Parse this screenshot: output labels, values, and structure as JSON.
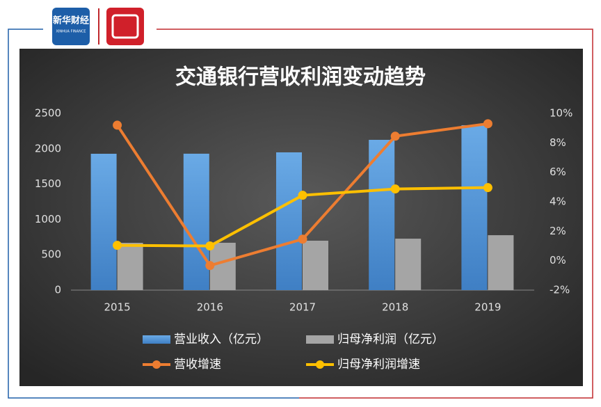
{
  "logo": {
    "name": "新华财经",
    "subtitle": "XINHUA FINANCE"
  },
  "chart_data": {
    "type": "bar",
    "title": "交通银行营收利润变动趋势",
    "categories": [
      "2015",
      "2016",
      "2017",
      "2018",
      "2019"
    ],
    "series": [
      {
        "name": "营业收入（亿元）",
        "type": "bar",
        "color": "#5b9bd5",
        "values": [
          1929,
          1930,
          1949,
          2126,
          2333
        ]
      },
      {
        "name": "归母净利润（亿元）",
        "type": "bar",
        "color": "#a5a5a5",
        "values": [
          669,
          670,
          699,
          728,
          777
        ]
      },
      {
        "name": "营收增速",
        "type": "line",
        "axis": "y2",
        "color": "#ed7d31",
        "values": [
          9.2,
          -0.33,
          1.46,
          8.45,
          9.3
        ]
      },
      {
        "name": "归母净利润增速",
        "type": "line",
        "axis": "y2",
        "color": "#ffc000",
        "values": [
          1.04,
          1.0,
          4.44,
          4.87,
          4.96
        ]
      }
    ],
    "ylim": [
      0,
      2500
    ],
    "yticks": [
      0,
      500,
      1000,
      1500,
      2000,
      2500
    ],
    "y2lim": [
      -2,
      10
    ],
    "y2ticks": [
      {
        "value": -2,
        "label": "-2%"
      },
      {
        "value": 0,
        "label": "0%"
      },
      {
        "value": 2,
        "label": "2%"
      },
      {
        "value": 4,
        "label": "4%"
      },
      {
        "value": 6,
        "label": "6%"
      },
      {
        "value": 8,
        "label": "8%"
      },
      {
        "value": 10,
        "label": "10%"
      }
    ],
    "grid": false
  }
}
